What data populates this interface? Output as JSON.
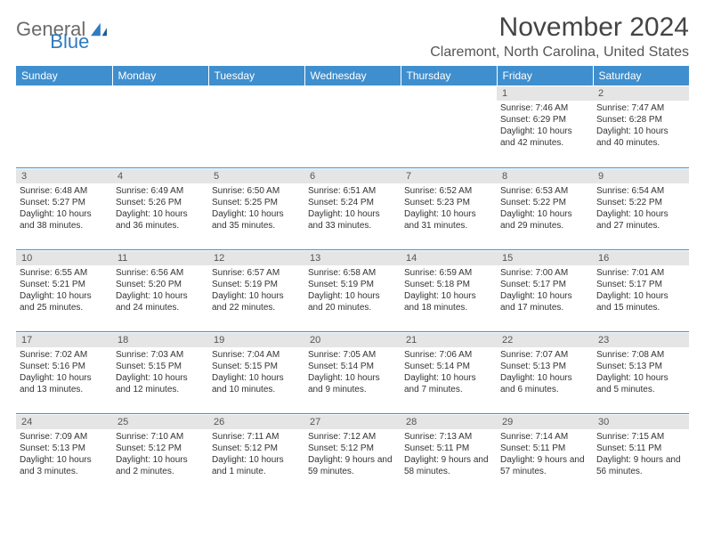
{
  "logo": {
    "text1": "General",
    "text2": "Blue"
  },
  "title": "November 2024",
  "location": "Claremont, North Carolina, United States",
  "header_bg": "#3f8fcf",
  "header_fg": "#ffffff",
  "daynum_bg": "#e5e5e5",
  "border_color": "#3f8fcf",
  "columns": [
    "Sunday",
    "Monday",
    "Tuesday",
    "Wednesday",
    "Thursday",
    "Friday",
    "Saturday"
  ],
  "weeks": [
    [
      {
        "n": "",
        "sunrise": "",
        "sunset": "",
        "daylight": ""
      },
      {
        "n": "",
        "sunrise": "",
        "sunset": "",
        "daylight": ""
      },
      {
        "n": "",
        "sunrise": "",
        "sunset": "",
        "daylight": ""
      },
      {
        "n": "",
        "sunrise": "",
        "sunset": "",
        "daylight": ""
      },
      {
        "n": "",
        "sunrise": "",
        "sunset": "",
        "daylight": ""
      },
      {
        "n": "1",
        "sunrise": "Sunrise: 7:46 AM",
        "sunset": "Sunset: 6:29 PM",
        "daylight": "Daylight: 10 hours and 42 minutes."
      },
      {
        "n": "2",
        "sunrise": "Sunrise: 7:47 AM",
        "sunset": "Sunset: 6:28 PM",
        "daylight": "Daylight: 10 hours and 40 minutes."
      }
    ],
    [
      {
        "n": "3",
        "sunrise": "Sunrise: 6:48 AM",
        "sunset": "Sunset: 5:27 PM",
        "daylight": "Daylight: 10 hours and 38 minutes."
      },
      {
        "n": "4",
        "sunrise": "Sunrise: 6:49 AM",
        "sunset": "Sunset: 5:26 PM",
        "daylight": "Daylight: 10 hours and 36 minutes."
      },
      {
        "n": "5",
        "sunrise": "Sunrise: 6:50 AM",
        "sunset": "Sunset: 5:25 PM",
        "daylight": "Daylight: 10 hours and 35 minutes."
      },
      {
        "n": "6",
        "sunrise": "Sunrise: 6:51 AM",
        "sunset": "Sunset: 5:24 PM",
        "daylight": "Daylight: 10 hours and 33 minutes."
      },
      {
        "n": "7",
        "sunrise": "Sunrise: 6:52 AM",
        "sunset": "Sunset: 5:23 PM",
        "daylight": "Daylight: 10 hours and 31 minutes."
      },
      {
        "n": "8",
        "sunrise": "Sunrise: 6:53 AM",
        "sunset": "Sunset: 5:22 PM",
        "daylight": "Daylight: 10 hours and 29 minutes."
      },
      {
        "n": "9",
        "sunrise": "Sunrise: 6:54 AM",
        "sunset": "Sunset: 5:22 PM",
        "daylight": "Daylight: 10 hours and 27 minutes."
      }
    ],
    [
      {
        "n": "10",
        "sunrise": "Sunrise: 6:55 AM",
        "sunset": "Sunset: 5:21 PM",
        "daylight": "Daylight: 10 hours and 25 minutes."
      },
      {
        "n": "11",
        "sunrise": "Sunrise: 6:56 AM",
        "sunset": "Sunset: 5:20 PM",
        "daylight": "Daylight: 10 hours and 24 minutes."
      },
      {
        "n": "12",
        "sunrise": "Sunrise: 6:57 AM",
        "sunset": "Sunset: 5:19 PM",
        "daylight": "Daylight: 10 hours and 22 minutes."
      },
      {
        "n": "13",
        "sunrise": "Sunrise: 6:58 AM",
        "sunset": "Sunset: 5:19 PM",
        "daylight": "Daylight: 10 hours and 20 minutes."
      },
      {
        "n": "14",
        "sunrise": "Sunrise: 6:59 AM",
        "sunset": "Sunset: 5:18 PM",
        "daylight": "Daylight: 10 hours and 18 minutes."
      },
      {
        "n": "15",
        "sunrise": "Sunrise: 7:00 AM",
        "sunset": "Sunset: 5:17 PM",
        "daylight": "Daylight: 10 hours and 17 minutes."
      },
      {
        "n": "16",
        "sunrise": "Sunrise: 7:01 AM",
        "sunset": "Sunset: 5:17 PM",
        "daylight": "Daylight: 10 hours and 15 minutes."
      }
    ],
    [
      {
        "n": "17",
        "sunrise": "Sunrise: 7:02 AM",
        "sunset": "Sunset: 5:16 PM",
        "daylight": "Daylight: 10 hours and 13 minutes."
      },
      {
        "n": "18",
        "sunrise": "Sunrise: 7:03 AM",
        "sunset": "Sunset: 5:15 PM",
        "daylight": "Daylight: 10 hours and 12 minutes."
      },
      {
        "n": "19",
        "sunrise": "Sunrise: 7:04 AM",
        "sunset": "Sunset: 5:15 PM",
        "daylight": "Daylight: 10 hours and 10 minutes."
      },
      {
        "n": "20",
        "sunrise": "Sunrise: 7:05 AM",
        "sunset": "Sunset: 5:14 PM",
        "daylight": "Daylight: 10 hours and 9 minutes."
      },
      {
        "n": "21",
        "sunrise": "Sunrise: 7:06 AM",
        "sunset": "Sunset: 5:14 PM",
        "daylight": "Daylight: 10 hours and 7 minutes."
      },
      {
        "n": "22",
        "sunrise": "Sunrise: 7:07 AM",
        "sunset": "Sunset: 5:13 PM",
        "daylight": "Daylight: 10 hours and 6 minutes."
      },
      {
        "n": "23",
        "sunrise": "Sunrise: 7:08 AM",
        "sunset": "Sunset: 5:13 PM",
        "daylight": "Daylight: 10 hours and 5 minutes."
      }
    ],
    [
      {
        "n": "24",
        "sunrise": "Sunrise: 7:09 AM",
        "sunset": "Sunset: 5:13 PM",
        "daylight": "Daylight: 10 hours and 3 minutes."
      },
      {
        "n": "25",
        "sunrise": "Sunrise: 7:10 AM",
        "sunset": "Sunset: 5:12 PM",
        "daylight": "Daylight: 10 hours and 2 minutes."
      },
      {
        "n": "26",
        "sunrise": "Sunrise: 7:11 AM",
        "sunset": "Sunset: 5:12 PM",
        "daylight": "Daylight: 10 hours and 1 minute."
      },
      {
        "n": "27",
        "sunrise": "Sunrise: 7:12 AM",
        "sunset": "Sunset: 5:12 PM",
        "daylight": "Daylight: 9 hours and 59 minutes."
      },
      {
        "n": "28",
        "sunrise": "Sunrise: 7:13 AM",
        "sunset": "Sunset: 5:11 PM",
        "daylight": "Daylight: 9 hours and 58 minutes."
      },
      {
        "n": "29",
        "sunrise": "Sunrise: 7:14 AM",
        "sunset": "Sunset: 5:11 PM",
        "daylight": "Daylight: 9 hours and 57 minutes."
      },
      {
        "n": "30",
        "sunrise": "Sunrise: 7:15 AM",
        "sunset": "Sunset: 5:11 PM",
        "daylight": "Daylight: 9 hours and 56 minutes."
      }
    ]
  ]
}
